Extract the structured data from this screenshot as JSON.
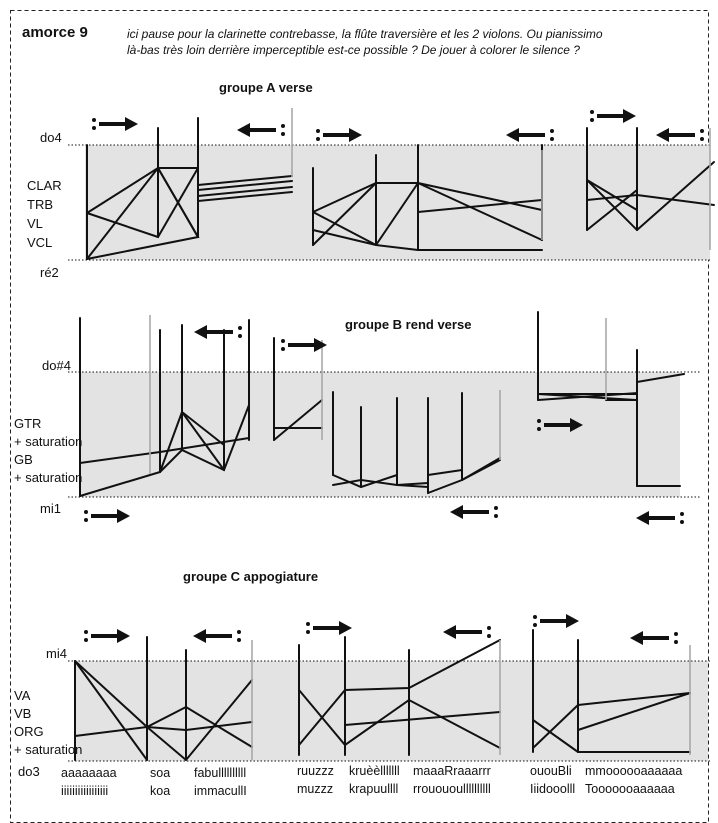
{
  "title": "amorce 9",
  "note": [
    "ici pause pour la clarinette contrebasse, la flûte traversière et les 2 violons. Ou pianissimo",
    "là-bas très loin derrière imperceptible est-ce possible ? De jouer à colorer le silence ?"
  ],
  "groups": [
    {
      "heading": "groupe A verse",
      "top_pitch": "do4",
      "bottom_pitch": "ré2",
      "instruments": [
        "CLAR",
        "TRB",
        "VL",
        "VCL"
      ]
    },
    {
      "heading": "groupe B rend verse",
      "top_pitch": "do#4",
      "bottom_pitch": "mi1",
      "instruments": [
        "GTR",
        "+ saturation",
        "GB",
        "+ saturation"
      ]
    },
    {
      "heading": "groupe C appogiature",
      "top_pitch": "mi4",
      "bottom_pitch": "do3",
      "instruments": [
        "VA",
        "VB",
        "ORG",
        "+ saturation"
      ],
      "syllables": [
        [
          "aaaaaaaa",
          "iiiiiiiiiiiiiiiii"
        ],
        [
          "soa",
          "koa"
        ],
        [
          "fabullllllllll",
          "immacullI"
        ],
        [
          "ruuzzz",
          "muzzz"
        ],
        [
          "kruèèlllllll",
          "krapuullll"
        ],
        [
          "maaaRraaarrr",
          "rrouououllllllllll"
        ],
        [
          "ououBli",
          "Iiidooolll"
        ],
        [
          "mmoooooaaaaaa",
          "Tooooooaaaaaa"
        ]
      ]
    }
  ],
  "colors": {
    "band": "#e3e3e3",
    "ink": "#111111",
    "grey_stem": "#999999",
    "frame": "#222222"
  },
  "icons": [
    "repeat-start-arrow-icon",
    "repeat-end-arrow-icon"
  ]
}
